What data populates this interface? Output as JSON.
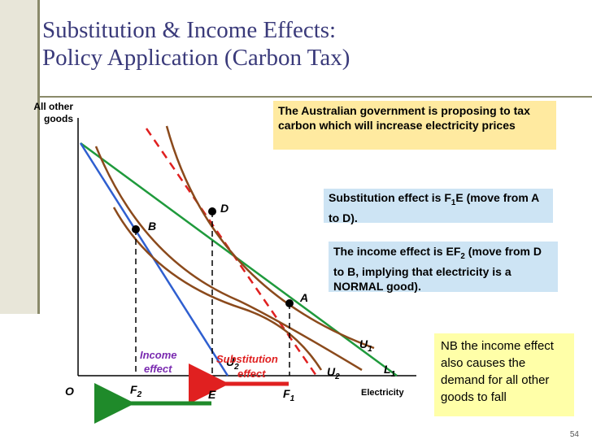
{
  "slide": {
    "title_line1": "Substitution & Income Effects:",
    "title_line2": "Policy Application (Carbon Tax)",
    "page_number": "54"
  },
  "axes": {
    "y_label_line1": "All other",
    "y_label_line2": "goods",
    "x_label": "Electricity",
    "origin": "O"
  },
  "points": {
    "a": "A",
    "b": "B",
    "d": "D"
  },
  "axis_marks": {
    "f2": "F",
    "f2_sub": "2",
    "e": "E",
    "f1": "F",
    "f1_sub": "1"
  },
  "curves": {
    "u1": "U",
    "u1_sub": "1",
    "u2_right": "U",
    "u2_right_sub": "2",
    "u2_left": "U",
    "u2_left_sub": "2",
    "l1": "L",
    "l1_sub": "1"
  },
  "effects": {
    "income_line1": "Income",
    "income_line2": "effect",
    "substitution_line1": "Substitution",
    "substitution_line2": "effect"
  },
  "callouts": {
    "carbon_tax": "The Australian government is proposing to tax carbon which will increase electricity prices",
    "substitution_pre": "Substitution effect is F",
    "substitution_sub": "1",
    "substitution_post": "E (move from A to D).",
    "income_pre": "The income effect is EF",
    "income_sub": "2",
    "income_post": " (move from D to B, implying that electricity is a NORMAL good).",
    "nb_note": "NB the income effect also causes the demand for all other goods to fall"
  },
  "colors": {
    "title": "#3a3a7a",
    "budget_original": "#1f9a3c",
    "budget_new": "#2f5fd0",
    "indifference_curves": "#8b4a1c",
    "compensated_budget": "#e02020",
    "income_effect_arrow": "#1f8a2a",
    "substitution_effect_arrow": "#e02020",
    "income_effect_text": "#7a2ab0",
    "substitution_effect_text": "#e02020",
    "callout_yellow": "#ffeaa0",
    "callout_blue": "#cde4f4",
    "note_yellow": "#ffffa8"
  }
}
